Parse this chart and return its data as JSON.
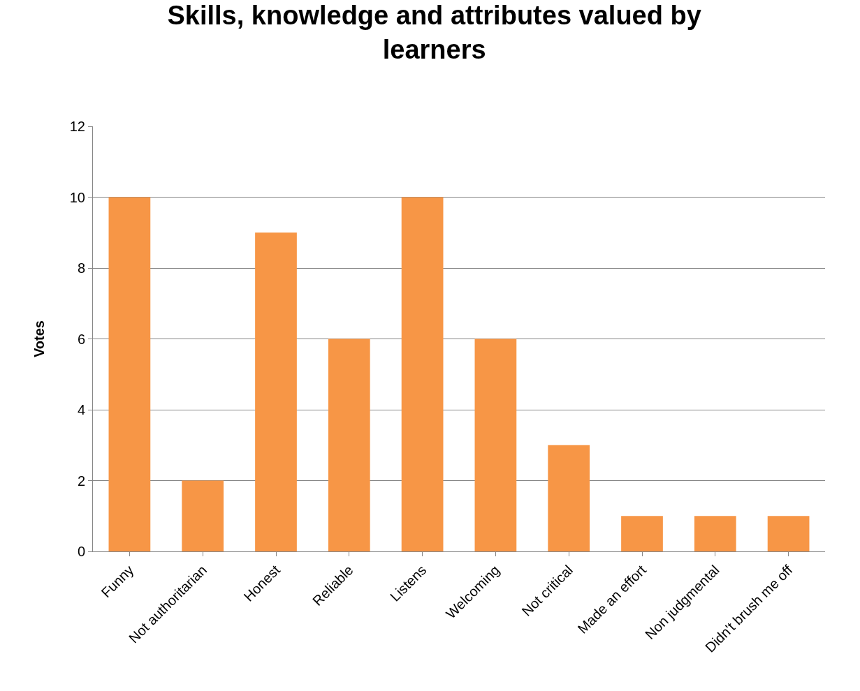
{
  "chart_data": {
    "type": "bar",
    "title": "Skills, knowledge and attributes valued by learners",
    "ylabel": "Votes",
    "categories": [
      "Funny",
      "Not authoritarian",
      "Honest",
      "Reliable",
      "Listens",
      "Welcoming",
      "Not critical",
      "Made an effort",
      "Non judgmental",
      "Didn't brush me off"
    ],
    "values": [
      10,
      2,
      9,
      6,
      10,
      6,
      3,
      1,
      1,
      1
    ],
    "color": "#f79646",
    "ylim": [
      0,
      12
    ],
    "yticks": [
      0,
      2,
      4,
      6,
      8,
      10,
      12
    ],
    "grid": "y"
  }
}
